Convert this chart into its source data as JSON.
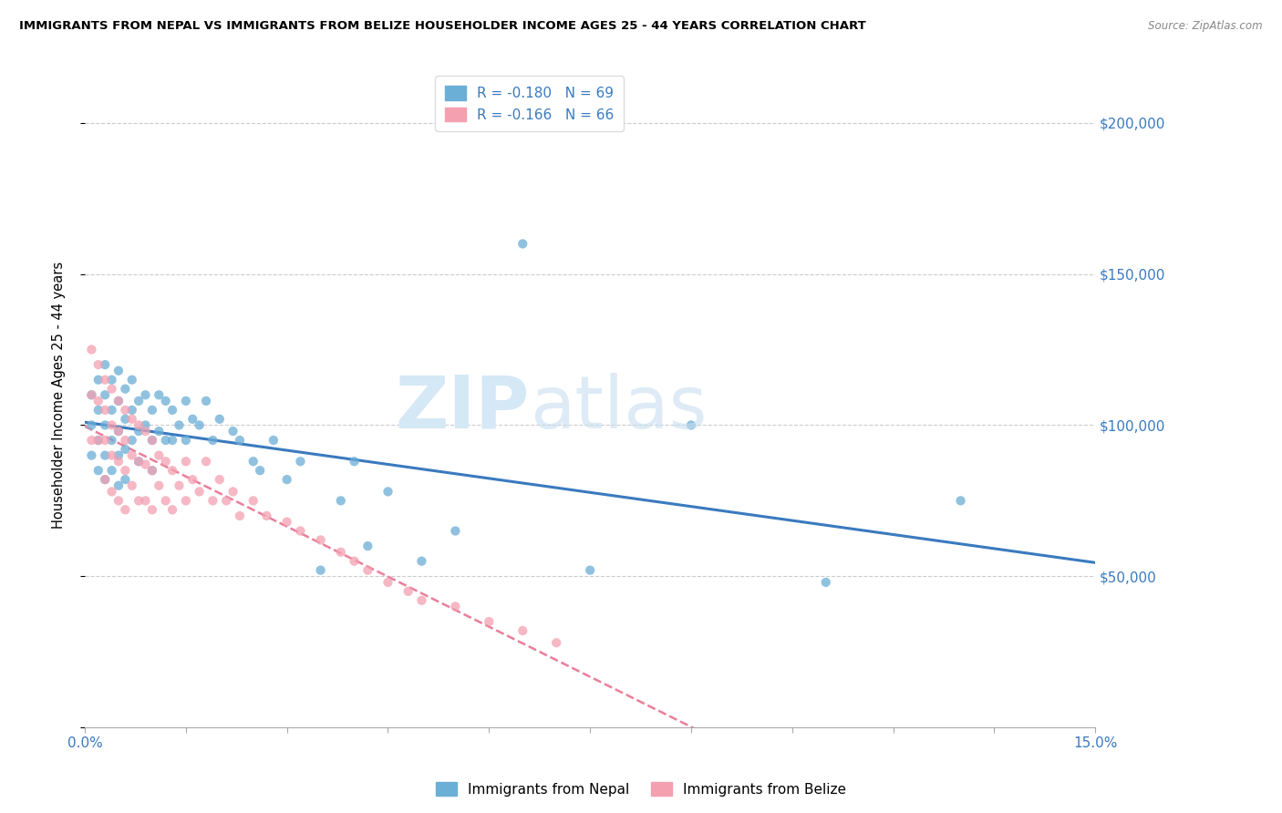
{
  "title": "IMMIGRANTS FROM NEPAL VS IMMIGRANTS FROM BELIZE HOUSEHOLDER INCOME AGES 25 - 44 YEARS CORRELATION CHART",
  "source": "Source: ZipAtlas.com",
  "ylabel": "Householder Income Ages 25 - 44 years",
  "xlim": [
    0.0,
    0.15
  ],
  "ylim": [
    0,
    220000
  ],
  "xticks": [
    0.0,
    0.015,
    0.03,
    0.045,
    0.06,
    0.075,
    0.09,
    0.105,
    0.12,
    0.135,
    0.15
  ],
  "xticklabels": [
    "0.0%",
    "",
    "",
    "",
    "",
    "",
    "",
    "",
    "",
    "",
    "15.0%"
  ],
  "ytick_positions": [
    0,
    50000,
    100000,
    150000,
    200000
  ],
  "ytick_labels": [
    "",
    "$50,000",
    "$100,000",
    "$150,000",
    "$200,000"
  ],
  "nepal_color": "#6baed6",
  "belize_color": "#f4a0b0",
  "nepal_line_color": "#3a7abf",
  "belize_line_color": "#e87090",
  "R_nepal": -0.18,
  "N_nepal": 69,
  "R_belize": -0.166,
  "N_belize": 66,
  "legend_labels": [
    "Immigrants from Nepal",
    "Immigrants from Belize"
  ],
  "nepal_x": [
    0.001,
    0.001,
    0.001,
    0.002,
    0.002,
    0.002,
    0.002,
    0.003,
    0.003,
    0.003,
    0.003,
    0.003,
    0.004,
    0.004,
    0.004,
    0.004,
    0.005,
    0.005,
    0.005,
    0.005,
    0.005,
    0.006,
    0.006,
    0.006,
    0.006,
    0.007,
    0.007,
    0.007,
    0.008,
    0.008,
    0.008,
    0.009,
    0.009,
    0.01,
    0.01,
    0.01,
    0.011,
    0.011,
    0.012,
    0.012,
    0.013,
    0.013,
    0.014,
    0.015,
    0.015,
    0.016,
    0.017,
    0.018,
    0.019,
    0.02,
    0.022,
    0.023,
    0.025,
    0.026,
    0.028,
    0.03,
    0.032,
    0.035,
    0.038,
    0.04,
    0.042,
    0.045,
    0.05,
    0.055,
    0.065,
    0.075,
    0.09,
    0.11,
    0.13
  ],
  "nepal_y": [
    110000,
    100000,
    90000,
    115000,
    105000,
    95000,
    85000,
    120000,
    110000,
    100000,
    90000,
    82000,
    115000,
    105000,
    95000,
    85000,
    118000,
    108000,
    98000,
    90000,
    80000,
    112000,
    102000,
    92000,
    82000,
    115000,
    105000,
    95000,
    108000,
    98000,
    88000,
    110000,
    100000,
    105000,
    95000,
    85000,
    110000,
    98000,
    108000,
    95000,
    105000,
    95000,
    100000,
    108000,
    95000,
    102000,
    100000,
    108000,
    95000,
    102000,
    98000,
    95000,
    88000,
    85000,
    95000,
    82000,
    88000,
    52000,
    75000,
    88000,
    60000,
    78000,
    55000,
    65000,
    160000,
    52000,
    100000,
    48000,
    75000
  ],
  "belize_x": [
    0.001,
    0.001,
    0.001,
    0.002,
    0.002,
    0.002,
    0.003,
    0.003,
    0.003,
    0.003,
    0.004,
    0.004,
    0.004,
    0.004,
    0.005,
    0.005,
    0.005,
    0.005,
    0.006,
    0.006,
    0.006,
    0.006,
    0.007,
    0.007,
    0.007,
    0.008,
    0.008,
    0.008,
    0.009,
    0.009,
    0.009,
    0.01,
    0.01,
    0.01,
    0.011,
    0.011,
    0.012,
    0.012,
    0.013,
    0.013,
    0.014,
    0.015,
    0.015,
    0.016,
    0.017,
    0.018,
    0.019,
    0.02,
    0.021,
    0.022,
    0.023,
    0.025,
    0.027,
    0.03,
    0.032,
    0.035,
    0.038,
    0.04,
    0.042,
    0.045,
    0.048,
    0.05,
    0.055,
    0.06,
    0.065,
    0.07
  ],
  "belize_y": [
    125000,
    110000,
    95000,
    120000,
    108000,
    95000,
    115000,
    105000,
    95000,
    82000,
    112000,
    100000,
    90000,
    78000,
    108000,
    98000,
    88000,
    75000,
    105000,
    95000,
    85000,
    72000,
    102000,
    90000,
    80000,
    100000,
    88000,
    75000,
    98000,
    87000,
    75000,
    95000,
    85000,
    72000,
    90000,
    80000,
    88000,
    75000,
    85000,
    72000,
    80000,
    88000,
    75000,
    82000,
    78000,
    88000,
    75000,
    82000,
    75000,
    78000,
    70000,
    75000,
    70000,
    68000,
    65000,
    62000,
    58000,
    55000,
    52000,
    48000,
    45000,
    42000,
    40000,
    35000,
    32000,
    28000
  ]
}
